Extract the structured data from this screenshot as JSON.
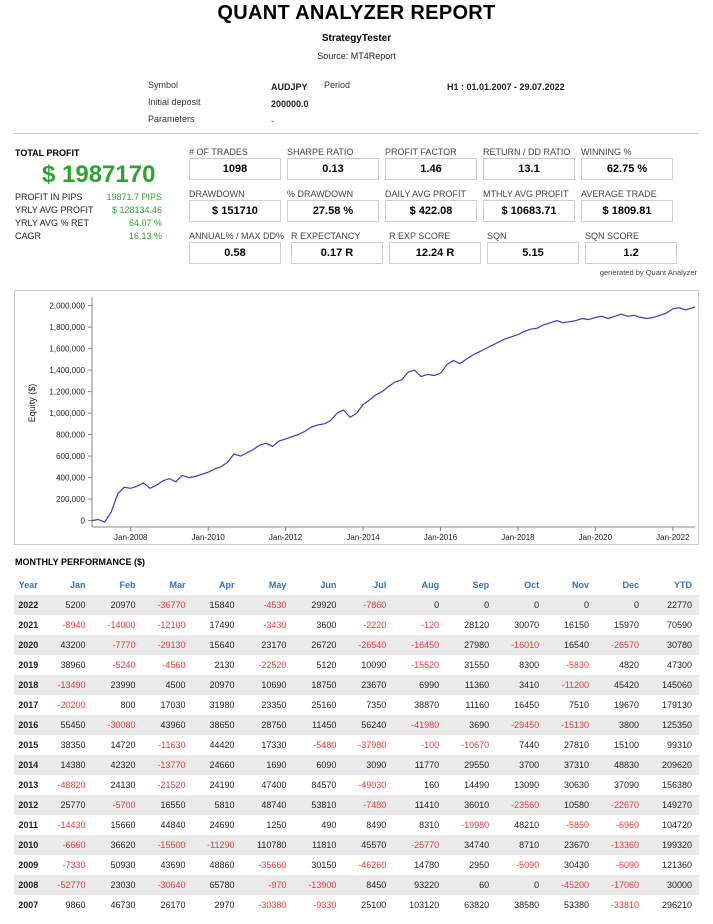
{
  "report": {
    "title": "QUANT ANALYZER REPORT",
    "subtitle": "StrategyTester",
    "source": "Source: MT4Report"
  },
  "meta": {
    "symbol_label": "Symbol",
    "symbol_value": "AUDJPY",
    "period_label": "Period",
    "period_value": "H1 : 01.01.2007 - 29.07.2022",
    "deposit_label": "Initial deposit",
    "deposit_value": "200000.0",
    "parameters_label": "Parameters",
    "parameters_value": "-"
  },
  "summary": {
    "total_profit_label": "TOTAL PROFIT",
    "total_profit_value": "$ 1987170",
    "rows": [
      {
        "label": "PROFIT IN PIPS",
        "value": "19871.7 PIPS"
      },
      {
        "label": "YRLY AVG PROFIT",
        "value": "$ 128134.46"
      },
      {
        "label": "YRLY AVG % RET",
        "value": "64.07 %"
      },
      {
        "label": "CAGR",
        "value": "16.13 %"
      }
    ]
  },
  "stats": [
    {
      "label": "# OF TRADES",
      "value": "1098"
    },
    {
      "label": "SHARPE RATIO",
      "value": "0.13"
    },
    {
      "label": "PROFIT FACTOR",
      "value": "1.46"
    },
    {
      "label": "RETURN / DD RATIO",
      "value": "13.1"
    },
    {
      "label": "WINNING %",
      "value": "62.75 %"
    },
    {
      "label": "DRAWDOWN",
      "value": "$ 151710"
    },
    {
      "label": "% DRAWDOWN",
      "value": "27.58 %"
    },
    {
      "label": "DAILY AVG PROFIT",
      "value": "$ 422.08"
    },
    {
      "label": "MTHLY AVG PROFIT",
      "value": "$ 10683.71"
    },
    {
      "label": "AVERAGE TRADE",
      "value": "$ 1809.81"
    },
    {
      "label": "ANNUAL% / MAX DD%",
      "value": "0.58"
    },
    {
      "label": "R EXPECTANCY",
      "value": "0.17 R"
    },
    {
      "label": "R EXP SCORE",
      "value": "12.24 R"
    },
    {
      "label": "SQN",
      "value": "5.15"
    },
    {
      "label": "SQN SCORE",
      "value": "1.2"
    }
  ],
  "generated_by": "generated by Quant Analyzer",
  "chart_data": {
    "type": "line",
    "ylabel": "Equity ($)",
    "xlabel": "",
    "ylim": [
      -60000,
      2080000
    ],
    "xlim": [
      "2007-01-01",
      "2022-07-29"
    ],
    "yticks": [
      0,
      200000,
      400000,
      600000,
      800000,
      1000000,
      1200000,
      1400000,
      1600000,
      1800000,
      2000000
    ],
    "ytick_labels": [
      "0",
      "200,000",
      "400,000",
      "600,000",
      "800,000",
      "1,000,000",
      "1,200,000",
      "1,400,000",
      "1,600,000",
      "1,800,000",
      "2,000,000"
    ],
    "xticks": [
      "Jan-2008",
      "Jan-2010",
      "Jan-2012",
      "Jan-2014",
      "Jan-2016",
      "Jan-2018",
      "Jan-2020",
      "Jan-2022"
    ],
    "line_color": "#3b3bc4",
    "grid": false,
    "series": [
      {
        "x": [
          "2007-01-01",
          "2007-03-01",
          "2007-05-01",
          "2007-07-01",
          "2007-09-01",
          "2007-11-01",
          "2008-01-01",
          "2008-03-01",
          "2008-05-01",
          "2008-07-01",
          "2008-09-01",
          "2008-11-01",
          "2009-01-01",
          "2009-03-01",
          "2009-05-01",
          "2009-07-01",
          "2009-09-01",
          "2009-11-01",
          "2010-01-01",
          "2010-03-01",
          "2010-05-01",
          "2010-07-01",
          "2010-09-01",
          "2010-11-01",
          "2011-01-01",
          "2011-03-01",
          "2011-05-01",
          "2011-07-01",
          "2011-09-01",
          "2011-11-01",
          "2012-01-01",
          "2012-03-01",
          "2012-05-01",
          "2012-07-01",
          "2012-09-01",
          "2012-11-01",
          "2013-01-01",
          "2013-03-01",
          "2013-05-01",
          "2013-07-01",
          "2013-09-01",
          "2013-11-01",
          "2014-01-01",
          "2014-03-01",
          "2014-05-01",
          "2014-07-01",
          "2014-09-01",
          "2014-11-01",
          "2015-01-01",
          "2015-03-01",
          "2015-05-01",
          "2015-07-01",
          "2015-09-01",
          "2015-11-01",
          "2016-01-01",
          "2016-03-01",
          "2016-05-01",
          "2016-07-01",
          "2016-09-01",
          "2016-11-01",
          "2017-01-01",
          "2017-03-01",
          "2017-05-01",
          "2017-07-01",
          "2017-09-01",
          "2017-11-01",
          "2018-01-01",
          "2018-03-01",
          "2018-05-01",
          "2018-07-01",
          "2018-09-01",
          "2018-11-01",
          "2019-01-01",
          "2019-03-01",
          "2019-05-01",
          "2019-07-01",
          "2019-09-01",
          "2019-11-01",
          "2020-01-01",
          "2020-03-01",
          "2020-05-01",
          "2020-07-01",
          "2020-09-01",
          "2020-11-01",
          "2021-01-01",
          "2021-03-01",
          "2021-05-01",
          "2021-07-01",
          "2021-09-01",
          "2021-11-01",
          "2022-01-01",
          "2022-03-01",
          "2022-05-01",
          "2022-07-29"
        ],
        "values": [
          0,
          10000,
          -15000,
          80000,
          250000,
          310000,
          300000,
          320000,
          350000,
          300000,
          330000,
          370000,
          390000,
          360000,
          420000,
          400000,
          410000,
          430000,
          450000,
          480000,
          500000,
          540000,
          620000,
          600000,
          630000,
          660000,
          700000,
          720000,
          690000,
          740000,
          760000,
          780000,
          800000,
          830000,
          870000,
          890000,
          900000,
          930000,
          1000000,
          1030000,
          960000,
          1000000,
          1080000,
          1120000,
          1170000,
          1200000,
          1250000,
          1290000,
          1310000,
          1380000,
          1400000,
          1340000,
          1360000,
          1350000,
          1370000,
          1450000,
          1490000,
          1460000,
          1500000,
          1540000,
          1570000,
          1600000,
          1630000,
          1660000,
          1690000,
          1710000,
          1730000,
          1760000,
          1780000,
          1790000,
          1820000,
          1840000,
          1860000,
          1840000,
          1850000,
          1860000,
          1880000,
          1870000,
          1890000,
          1900000,
          1880000,
          1900000,
          1920000,
          1900000,
          1910000,
          1890000,
          1880000,
          1890000,
          1910000,
          1930000,
          1970000,
          1980000,
          1960000,
          1987170
        ]
      }
    ]
  },
  "monthly": {
    "title": "MONTHLY PERFORMANCE ($)",
    "headers": [
      "Year",
      "Jan",
      "Feb",
      "Mar",
      "Apr",
      "May",
      "Jun",
      "Jul",
      "Aug",
      "Sep",
      "Oct",
      "Nov",
      "Dec",
      "YTD"
    ],
    "rows": [
      [
        "2022",
        "5200",
        "20970",
        "-36770",
        "15840",
        "-4530",
        "29920",
        "-7860",
        "0",
        "0",
        "0",
        "0",
        "0",
        "22770"
      ],
      [
        "2021",
        "-8940",
        "-14000",
        "-12100",
        "17490",
        "-3430",
        "3600",
        "-2220",
        "-120",
        "28120",
        "30070",
        "16150",
        "15970",
        "70590"
      ],
      [
        "2020",
        "43200",
        "-7770",
        "-29130",
        "15640",
        "23170",
        "26720",
        "-26540",
        "-16450",
        "27980",
        "-16010",
        "16540",
        "-26570",
        "30780"
      ],
      [
        "2019",
        "38960",
        "-5240",
        "-4560",
        "2130",
        "-22520",
        "5120",
        "10090",
        "-15520",
        "31550",
        "8300",
        "-5830",
        "4820",
        "47300"
      ],
      [
        "2018",
        "-13490",
        "23990",
        "4500",
        "20970",
        "10690",
        "18750",
        "23670",
        "6990",
        "11360",
        "3410",
        "-11200",
        "45420",
        "145060"
      ],
      [
        "2017",
        "-20200",
        "800",
        "17030",
        "31980",
        "23350",
        "25160",
        "7350",
        "38870",
        "11160",
        "16450",
        "7510",
        "19670",
        "179130"
      ],
      [
        "2016",
        "55450",
        "-30080",
        "43960",
        "38650",
        "28750",
        "11450",
        "56240",
        "-41980",
        "3690",
        "-29450",
        "-15130",
        "3800",
        "125350"
      ],
      [
        "2015",
        "38350",
        "14720",
        "-11630",
        "44420",
        "17330",
        "-5480",
        "-37980",
        "-100",
        "-10670",
        "7440",
        "27810",
        "15100",
        "99310"
      ],
      [
        "2014",
        "14380",
        "42320",
        "-13770",
        "24660",
        "1690",
        "6090",
        "3090",
        "11770",
        "29550",
        "3700",
        "37310",
        "48830",
        "209620"
      ],
      [
        "2013",
        "-48820",
        "24130",
        "-21520",
        "24190",
        "47400",
        "84570",
        "-49030",
        "160",
        "14490",
        "13090",
        "30630",
        "37090",
        "156380"
      ],
      [
        "2012",
        "25770",
        "-5700",
        "16550",
        "5810",
        "48740",
        "53810",
        "-7480",
        "11410",
        "36010",
        "-23560",
        "10580",
        "-22670",
        "149270"
      ],
      [
        "2011",
        "-14430",
        "15660",
        "44840",
        "24690",
        "1250",
        "490",
        "8490",
        "8310",
        "-19980",
        "48210",
        "-5850",
        "-6960",
        "104720"
      ],
      [
        "2010",
        "-6660",
        "36620",
        "-15500",
        "-11290",
        "110780",
        "11810",
        "45570",
        "-25770",
        "34740",
        "8710",
        "23670",
        "-13360",
        "199320"
      ],
      [
        "2009",
        "-7330",
        "50930",
        "43690",
        "48860",
        "-35660",
        "30150",
        "-46260",
        "14780",
        "2950",
        "-5090",
        "30430",
        "-6090",
        "121360"
      ],
      [
        "2008",
        "-52770",
        "23030",
        "-30640",
        "65780",
        "-970",
        "-13900",
        "8450",
        "93220",
        "60",
        "0",
        "-45200",
        "-17060",
        "30000"
      ],
      [
        "2007",
        "9860",
        "46730",
        "26170",
        "2970",
        "-30380",
        "-9330",
        "25100",
        "103120",
        "63820",
        "38580",
        "53380",
        "-33810",
        "296210"
      ]
    ]
  }
}
